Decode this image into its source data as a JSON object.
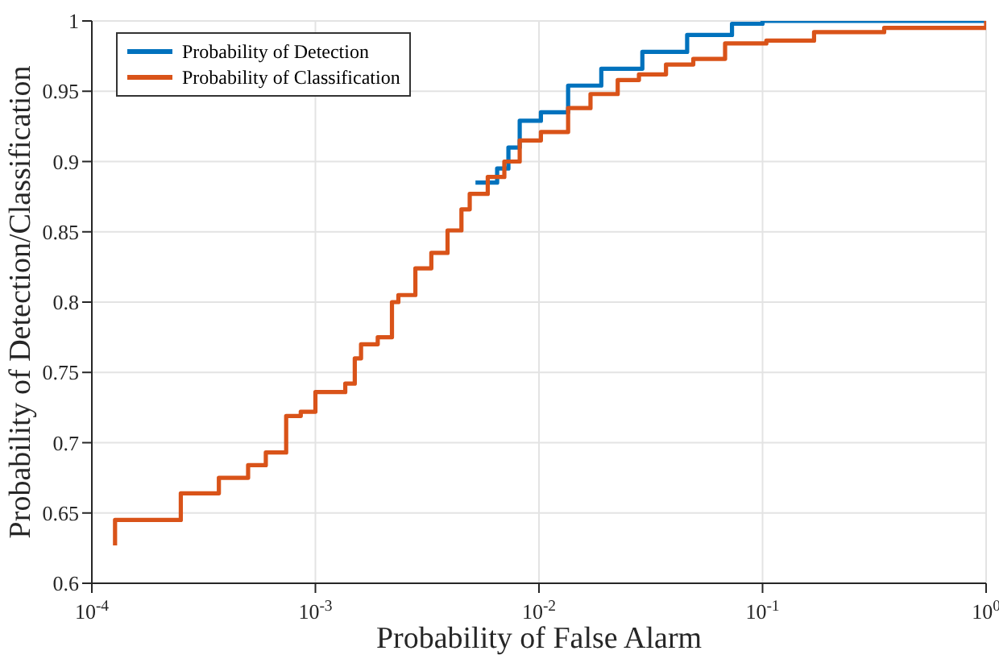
{
  "chart_data": {
    "type": "step",
    "xlabel": "Probability of False Alarm",
    "ylabel": "Probability of Detection/Classification",
    "log": "x",
    "grid": true,
    "legend": "top left",
    "xlim": [
      0.0001,
      1
    ],
    "xticks": [
      {
        "value": 0.0001,
        "label": "10$^{-4}$"
      },
      {
        "value": 0.001,
        "label": "10$^{-3}$"
      },
      {
        "value": 0.01,
        "label": "10$^{-2}$"
      },
      {
        "value": 0.1,
        "label": "10$^{-1}$"
      },
      {
        "value": 1,
        "label": "10$^{0}$"
      }
    ],
    "ylim": [
      0.6,
      1
    ],
    "yticks": [
      0.6,
      0.65,
      0.7,
      0.75,
      0.8,
      0.85,
      0.9,
      0.95,
      1
    ],
    "series": [
      {
        "name": "Probability of Detection",
        "color": "#0072bd",
        "x": [
          0.0052,
          0.0065,
          0.0073,
          0.0082,
          0.0102,
          0.0135,
          0.019,
          0.029,
          0.046,
          0.073,
          0.1,
          1
        ],
        "values": [
          0.885,
          0.895,
          0.91,
          0.929,
          0.935,
          0.954,
          0.966,
          0.978,
          0.99,
          0.998,
          1,
          1
        ]
      },
      {
        "name": "Probability of Classification",
        "color": "#d95319",
        "x": [
          0.000127,
          0.000127,
          0.00025,
          0.00037,
          0.0005,
          0.0006,
          0.00074,
          0.00086,
          0.001,
          0.00136,
          0.0015,
          0.0016,
          0.0019,
          0.0022,
          0.00235,
          0.0028,
          0.0033,
          0.0039,
          0.0045,
          0.0049,
          0.0059,
          0.007,
          0.0082,
          0.0102,
          0.0135,
          0.017,
          0.0225,
          0.028,
          0.037,
          0.049,
          0.068,
          0.104,
          0.17,
          0.35,
          1
        ],
        "values": [
          0.627,
          0.645,
          0.664,
          0.675,
          0.684,
          0.693,
          0.719,
          0.722,
          0.736,
          0.742,
          0.76,
          0.77,
          0.775,
          0.8,
          0.805,
          0.824,
          0.835,
          0.851,
          0.866,
          0.877,
          0.889,
          0.9,
          0.915,
          0.921,
          0.938,
          0.948,
          0.958,
          0.962,
          0.969,
          0.973,
          0.984,
          0.986,
          0.992,
          0.995,
          1
        ]
      }
    ]
  }
}
